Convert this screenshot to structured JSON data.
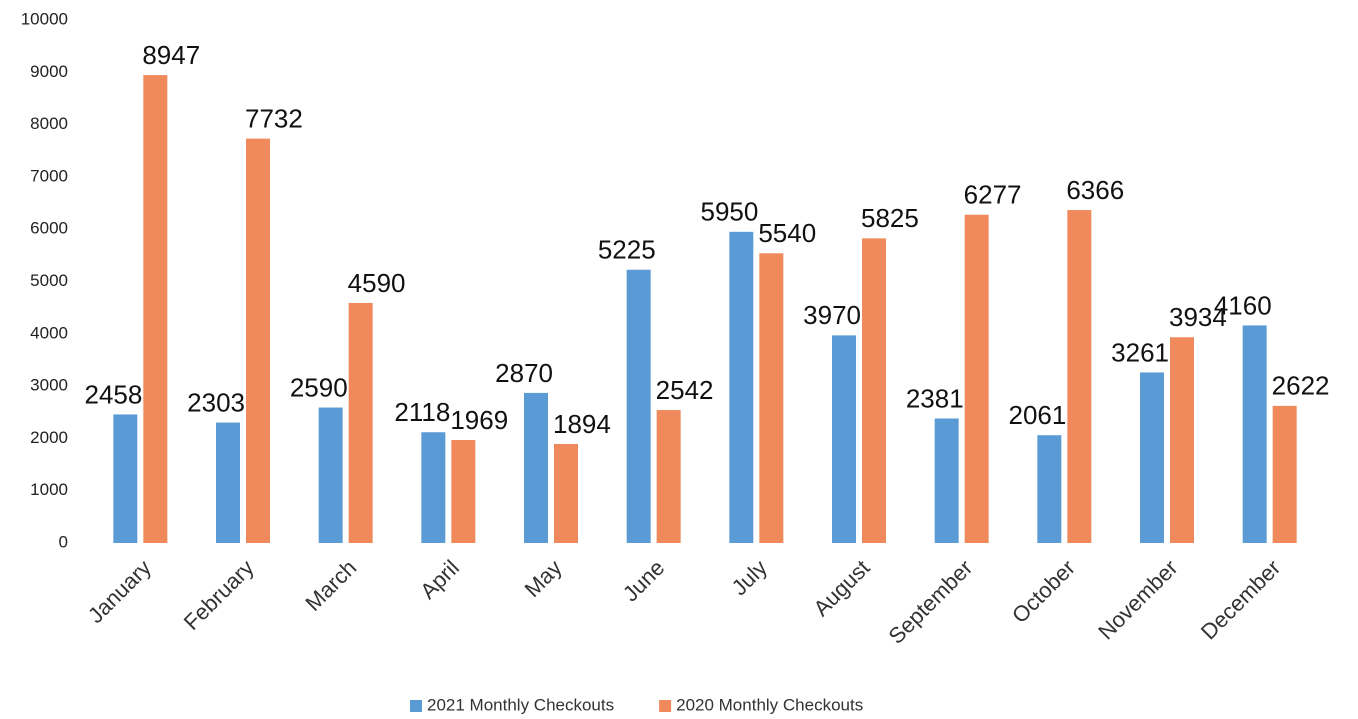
{
  "chart_data": {
    "type": "bar",
    "categories": [
      "January",
      "February",
      "March",
      "April",
      "May",
      "June",
      "July",
      "August",
      "September",
      "October",
      "November",
      "December"
    ],
    "series": [
      {
        "name": "2021 Monthly Checkouts",
        "color": "#5b9bd5",
        "values": [
          2458,
          2303,
          2590,
          2118,
          2870,
          5225,
          5950,
          3970,
          2381,
          2061,
          3261,
          4160
        ]
      },
      {
        "name": "2020 Monthly Checkouts",
        "color": "#f08a5d",
        "values": [
          8947,
          7732,
          4590,
          1969,
          1894,
          2542,
          5540,
          5825,
          6277,
          6366,
          3934,
          2622
        ]
      }
    ],
    "ylim": [
      0,
      10000
    ],
    "yticks": [
      0,
      1000,
      2000,
      3000,
      4000,
      5000,
      6000,
      7000,
      8000,
      9000,
      10000
    ],
    "grid": false,
    "legend": "bottom"
  }
}
